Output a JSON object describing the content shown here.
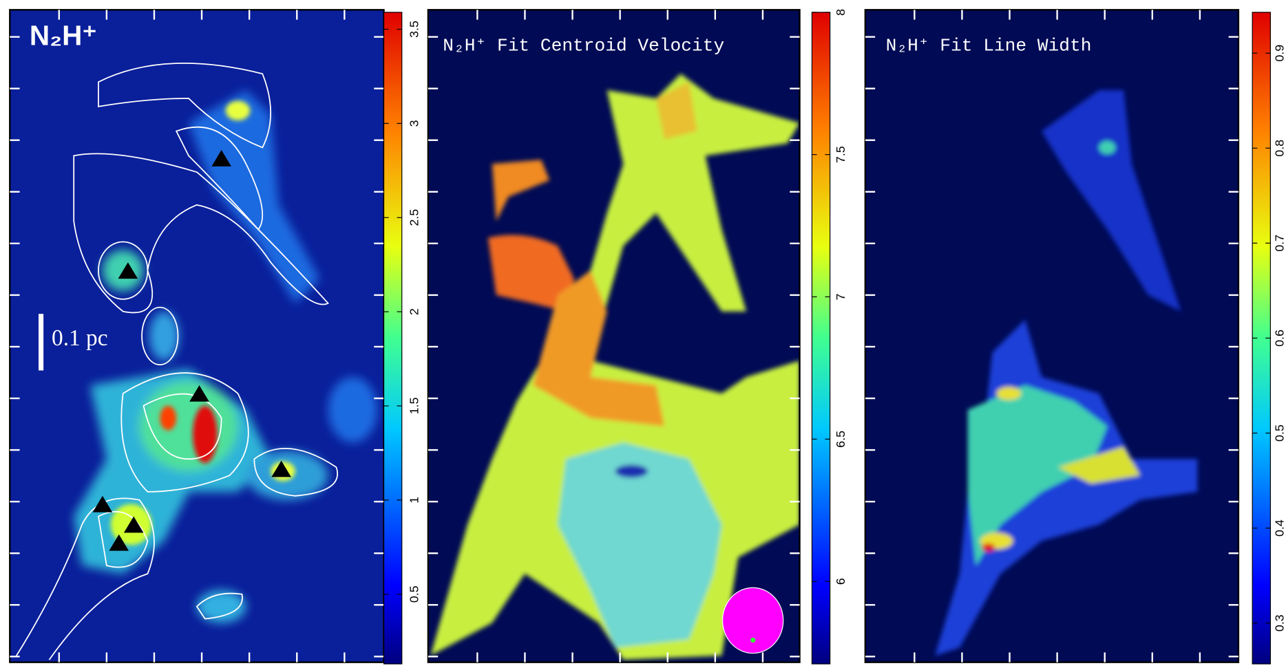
{
  "chart_data": [
    {
      "type": "heatmap",
      "title": "N₂H⁺",
      "annotation": "0.1 pc",
      "colormap": "jet",
      "ylim": [
        0.13,
        3.59
      ],
      "yticks": [
        0.5,
        1,
        1.5,
        2,
        2.5,
        3,
        3.5
      ]
    },
    {
      "type": "heatmap",
      "title": "N₂H⁺ Fit Centroid Velocity",
      "colormap": "jet",
      "ylim": [
        5.71,
        8.0
      ],
      "yticks": [
        6,
        6.5,
        7,
        7.5,
        8
      ]
    },
    {
      "type": "heatmap",
      "title": "N₂H⁺ Fit Line Width",
      "colormap": "jet",
      "ylim": [
        0.257,
        0.943
      ],
      "yticks": [
        0.3,
        0.4,
        0.5,
        0.6,
        0.7,
        0.8,
        0.9
      ]
    }
  ]
}
